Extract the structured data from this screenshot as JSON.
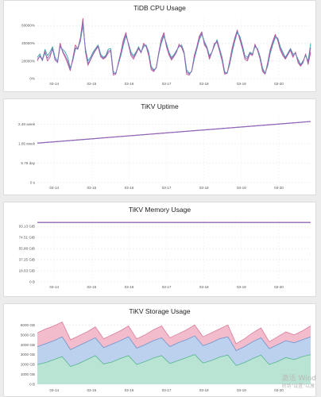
{
  "charts": [
    {
      "title": "TiDB CPU Usage",
      "chart_data": {
        "type": "line",
        "title": "TiDB CPU Usage",
        "yticks": [
          "0%",
          "20000%",
          "40000%",
          "60000%"
        ],
        "ylim": [
          0,
          70000
        ],
        "xticks": [
          "03-14",
          "03-15",
          "03-16",
          "03-17",
          "03-18",
          "03-19",
          "03-20"
        ],
        "series": [
          {
            "color": "#c2568f",
            "values": [
              20000,
              26000,
              22000,
              31000,
              20000,
              24000,
              35000,
              21000,
              19000,
              40000,
              30000,
              24000,
              17000,
              9000,
              23000,
              38000,
              34000,
              46000,
              68000,
              30000,
              15000,
              21000,
              27000,
              32000,
              36000,
              25000,
              22000,
              24000,
              29000,
              31000,
              4000,
              5000,
              18000,
              30000,
              44000,
              52000,
              38000,
              26000,
              22000,
              28000,
              34000,
              29000,
              40000,
              36000,
              26000,
              10000,
              8000,
              13000,
              30000,
              45000,
              52000,
              36000,
              27000,
              21000,
              25000,
              30000,
              39000,
              35000,
              28000,
              5000,
              4000,
              9000,
              26000,
              36000,
              48000,
              53000,
              38000,
              34000,
              22000,
              30000,
              40000,
              41000,
              31000,
              20000,
              5000,
              6000,
              20000,
              35000,
              46000,
              55000,
              44000,
              34000,
              22000,
              20000,
              28000,
              26000,
              39000,
              32000,
              22000,
              8000,
              5000,
              18000,
              33000,
              42000,
              50000,
              43000,
              32000,
              26000,
              22000,
              27000,
              32000,
              24000,
              30000,
              18000,
              14000,
              18000,
              28000,
              16000,
              30000
            ]
          },
          {
            "color": "#3aa5a5",
            "values": [
              24000,
              28000,
              20000,
              33000,
              26000,
              30000,
              36000,
              24000,
              20000,
              36000,
              33000,
              30000,
              24000,
              12000,
              20000,
              33000,
              35000,
              42000,
              60000,
              34000,
              20000,
              24000,
              30000,
              34000,
              38000,
              28000,
              24000,
              26000,
              33000,
              34000,
              8000,
              6000,
              16000,
              26000,
              38000,
              48000,
              40000,
              30000,
              26000,
              30000,
              36000,
              30000,
              36000,
              38000,
              30000,
              14000,
              10000,
              12000,
              28000,
              40000,
              48000,
              40000,
              30000,
              24000,
              27000,
              32000,
              36000,
              38000,
              30000,
              10000,
              6000,
              8000,
              22000,
              33000,
              44000,
              50000,
              42000,
              36000,
              26000,
              30000,
              37000,
              44000,
              34000,
              24000,
              8000,
              6000,
              16000,
              30000,
              42000,
              52000,
              48000,
              38000,
              26000,
              24000,
              30000,
              28000,
              36000,
              34000,
              25000,
              12000,
              6000,
              14000,
              28000,
              38000,
              46000,
              46000,
              36000,
              30000,
              24000,
              29000,
              34000,
              28000,
              28000,
              22000,
              16000,
              20000,
              26000,
              20000,
              40000
            ]
          },
          {
            "color": "#8a6abd",
            "values": [
              22000,
              25000,
              21000,
              29000,
              23000,
              27000,
              33000,
              22000,
              18000,
              37000,
              31000,
              26000,
              20000,
              10000,
              21000,
              35000,
              33000,
              44000,
              63000,
              32000,
              17000,
              22000,
              28000,
              33000,
              37000,
              26000,
              23000,
              25000,
              31000,
              32000,
              6000,
              5500,
              17000,
              28000,
              41000,
              50000,
              39000,
              28000,
              24000,
              29000,
              35000,
              29500,
              38000,
              37000,
              28000,
              12000,
              9000,
              12500,
              29000,
              42000,
              50000,
              38000,
              28500,
              22500,
              26000,
              31000,
              37000,
              36500,
              29000,
              7500,
              5000,
              8500,
              24000,
              34500,
              46000,
              51500,
              40000,
              35000,
              24000,
              30000,
              38500,
              42500,
              32500,
              22000,
              6500,
              6000,
              18000,
              32500,
              44000,
              53500,
              46000,
              36000,
              24000,
              22000,
              29000,
              27000,
              37500,
              33000,
              23500,
              10000,
              5500,
              16000,
              30500,
              40000,
              48000,
              44500,
              34000,
              28000,
              23000,
              28000,
              33000,
              26000,
              29000,
              20000,
              15000,
              19000,
              27000,
              18000,
              35000
            ]
          }
        ]
      }
    },
    {
      "title": "TiKV Uptime",
      "chart_data": {
        "type": "line",
        "title": "TiKV Uptime",
        "yticks": [
          "0 s",
          "5.79 day",
          "1.65 week",
          "2.48 week"
        ],
        "ylim": [
          0,
          2.8
        ],
        "xticks": [
          "03-14",
          "03-15",
          "03-16",
          "03-17",
          "03-18",
          "03-19",
          "03-20"
        ],
        "series": [
          {
            "color": "#c2568f",
            "x": [
              0,
              1
            ],
            "values": [
              1.68,
              2.6
            ]
          },
          {
            "color": "#8a6abd",
            "x": [
              0,
              1
            ],
            "values": [
              1.675,
              2.595
            ]
          }
        ]
      }
    },
    {
      "title": "TiKV Memory Usage",
      "chart_data": {
        "type": "line",
        "title": "TiKV Memory Usage",
        "yticks": [
          "0 B",
          "18.63 GiB",
          "37.25 GiB",
          "55.88 GiB",
          "74.51 GiB",
          "93.13 GiB"
        ],
        "ylim": [
          0,
          104
        ],
        "xticks": [
          "03-14",
          "03-15",
          "03-16",
          "03-17",
          "03-18",
          "03-19",
          "03-20"
        ],
        "series": [
          {
            "color": "#c2568f",
            "x": [
              0,
              1
            ],
            "values": [
              100,
              100
            ]
          },
          {
            "color": "#8a6abd",
            "x": [
              0,
              1
            ],
            "values": [
              99.6,
              99.6
            ]
          }
        ]
      }
    },
    {
      "title": "TiKV Storage Usage",
      "chart_data": {
        "type": "area",
        "title": "TiKV Storage Usage",
        "yticks": [
          "0 B",
          "1000 GB",
          "2000 GB",
          "3000 GB",
          "4000 GB",
          "5000 GB",
          "6000 GB"
        ],
        "ylim": [
          0,
          6500
        ],
        "xticks": [
          "03-14",
          "03-15",
          "03-16",
          "03-17",
          "03-18",
          "03-19",
          "03-20"
        ],
        "series": [
          {
            "color": "#b9e3d2",
            "line": "#55b58e",
            "values": [
              2000,
              2200,
              2500,
              2800,
              1800,
              2100,
              2500,
              2900,
              2050,
              2250,
              2600,
              2900,
              2000,
              2300,
              2650,
              2900,
              2100,
              2400,
              2700,
              3000,
              2150,
              2400,
              2750,
              2950,
              1900,
              2200,
              2600,
              2950,
              2000,
              2300,
              2700,
              2500,
              2800,
              3000
            ]
          },
          {
            "color": "#bcd1ee",
            "line": "#6f94cc",
            "values": [
              3800,
              4100,
              4400,
              4800,
              3500,
              3900,
              4300,
              4700,
              3700,
              4050,
              4400,
              4800,
              3650,
              4000,
              4400,
              4700,
              3800,
              4200,
              4500,
              4900,
              3900,
              4200,
              4600,
              4800,
              3400,
              3800,
              4300,
              4700,
              3600,
              4000,
              4400,
              4200,
              4500,
              4800
            ]
          },
          {
            "color": "#f2bccc",
            "line": "#d97a98",
            "values": [
              5200,
              5600,
              5900,
              6300,
              4500,
              4900,
              5300,
              5800,
              4600,
              5000,
              5400,
              5900,
              4600,
              5000,
              5500,
              5900,
              4700,
              5100,
              5500,
              6000,
              4800,
              5200,
              5600,
              6000,
              4100,
              4600,
              5200,
              5700,
              4300,
              4800,
              5300,
              5000,
              5400,
              5900
            ]
          }
        ]
      }
    }
  ],
  "watermark": {
    "line1": "激活 Wind",
    "line2": "转到\"设置\"以激"
  }
}
